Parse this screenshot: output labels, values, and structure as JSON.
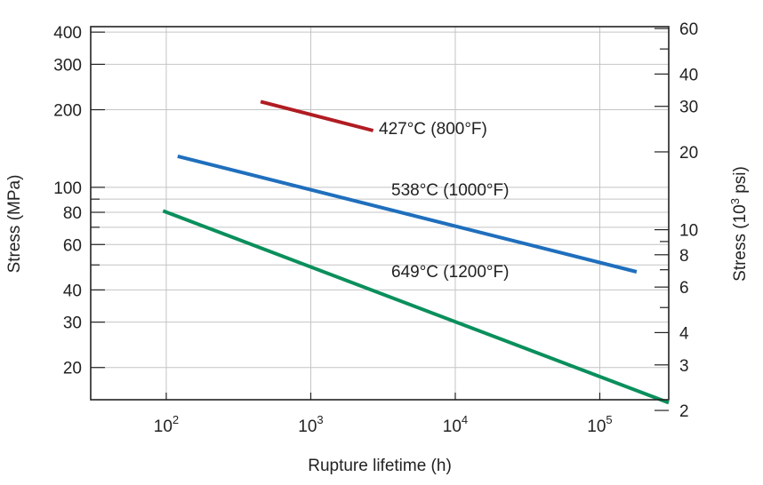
{
  "chart_data": {
    "type": "line",
    "x_scale": "log",
    "y_scale": "log",
    "xlabel": "Rupture lifetime (h)",
    "ylabel": "Stress (MPa)",
    "ylabel_right": {
      "prefix": "Stress (10",
      "exponent": "3",
      "suffix": " psi)"
    },
    "xlim": [
      30,
      300000
    ],
    "ylim": [
      15,
      420
    ],
    "ylim_right_psi_thousands": [
      2.2,
      61
    ],
    "grid": true,
    "x_ticks": [
      {
        "value": 100,
        "base": "10",
        "exponent": "2"
      },
      {
        "value": 1000,
        "base": "10",
        "exponent": "3"
      },
      {
        "value": 10000,
        "base": "10",
        "exponent": "4"
      },
      {
        "value": 100000,
        "base": "10",
        "exponent": "5"
      }
    ],
    "y_ticks": [
      {
        "value": 20,
        "label": "20"
      },
      {
        "value": 30,
        "label": "30"
      },
      {
        "value": 40,
        "label": "40"
      },
      {
        "value": 60,
        "label": "60"
      },
      {
        "value": 80,
        "label": "80"
      },
      {
        "value": 100,
        "label": "100"
      },
      {
        "value": 200,
        "label": "200"
      },
      {
        "value": 300,
        "label": "300"
      },
      {
        "value": 400,
        "label": "400"
      }
    ],
    "y_minor_ticks": [
      50,
      70,
      90
    ],
    "y_ticks_right": [
      {
        "value": 2,
        "label": "2"
      },
      {
        "value": 3,
        "label": "3"
      },
      {
        "value": 4,
        "label": "4"
      },
      {
        "value": 6,
        "label": "6"
      },
      {
        "value": 8,
        "label": "8"
      },
      {
        "value": 10,
        "label": "10"
      },
      {
        "value": 20,
        "label": "20"
      },
      {
        "value": 30,
        "label": "30"
      },
      {
        "value": 40,
        "label": "40"
      },
      {
        "value": 60,
        "label": "60"
      }
    ],
    "y_minor_ticks_right": [
      5,
      7,
      9,
      50
    ],
    "series": [
      {
        "name": "427°C (800°F)",
        "color": "#b01c22",
        "x": [
          450,
          2700
        ],
        "y": [
          215,
          166
        ]
      },
      {
        "name": "538°C (1000°F)",
        "color": "#1f6fbd",
        "x": [
          120,
          180000
        ],
        "y": [
          132,
          47
        ]
      },
      {
        "name": "649°C (1200°F)",
        "color": "#0a8f5c",
        "x": [
          95,
          300000
        ],
        "y": [
          81,
          14.6
        ]
      }
    ]
  }
}
